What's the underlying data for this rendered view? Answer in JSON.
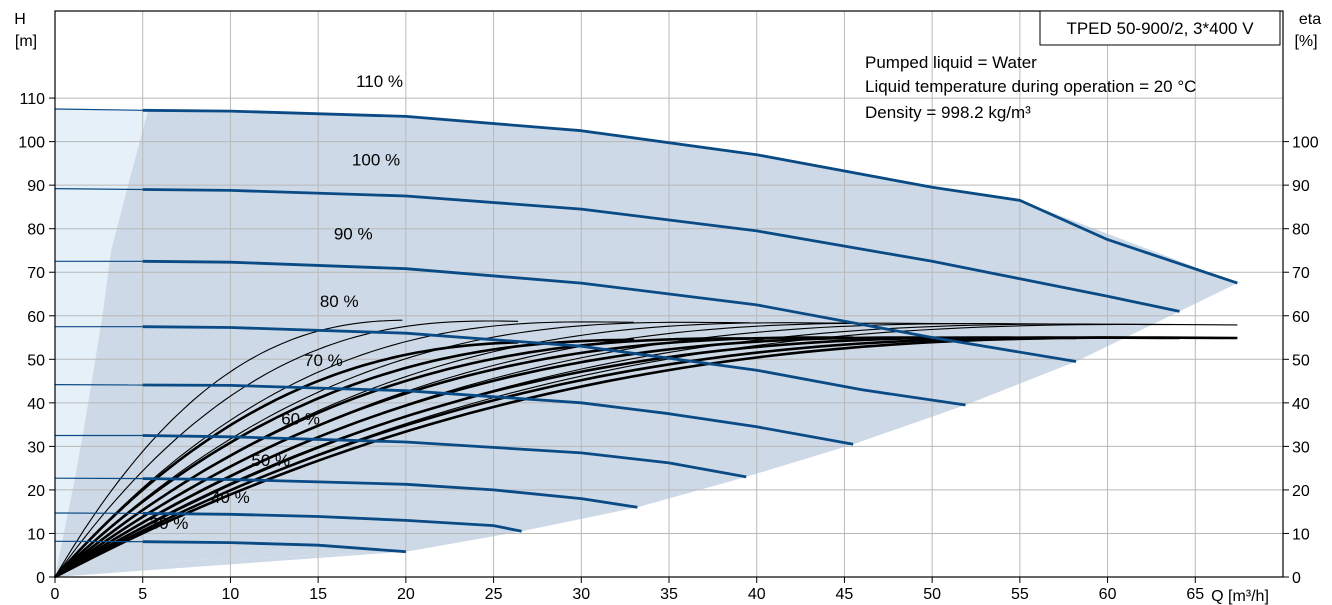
{
  "chart_data": {
    "type": "line",
    "title": "TPED 50-900/2, 3*400 V",
    "info_lines": [
      "Pumped liquid = Water",
      "Liquid temperature during operation = 20 °C",
      "Density = 998.2 kg/m³"
    ],
    "axes": {
      "x": {
        "label": "Q [m³/h]",
        "range": [
          0,
          70
        ],
        "ticks": [
          0,
          5,
          10,
          15,
          20,
          25,
          30,
          35,
          40,
          45,
          50,
          55,
          60,
          65
        ]
      },
      "y_left": {
        "label_top": "H",
        "label_unit": "[m]",
        "range": [
          0,
          130
        ],
        "ticks": [
          0,
          10,
          20,
          30,
          40,
          50,
          60,
          70,
          80,
          90,
          100,
          110
        ]
      },
      "y_right": {
        "label_top": "eta",
        "label_unit": "[%]",
        "range": [
          0,
          130
        ],
        "ticks": [
          0,
          10,
          20,
          30,
          40,
          50,
          60,
          70,
          80,
          90,
          100
        ]
      }
    },
    "grid": true,
    "colors": {
      "head_curve": "#0a4a85",
      "operating_area": "#cdd9e6",
      "left_area": "#e6f0f8",
      "efficiency_curve": "#000000",
      "grid": "#b9b9b9"
    },
    "head_curves": [
      {
        "label": "110 %",
        "points": [
          [
            0,
            107.5
          ],
          [
            5,
            107.2
          ],
          [
            10,
            107.0
          ],
          [
            20,
            105.8
          ],
          [
            30,
            102.5
          ],
          [
            40,
            97.0
          ],
          [
            50,
            89.5
          ],
          [
            55,
            86.5
          ],
          [
            60,
            77.5
          ],
          [
            67.4,
            67.5
          ]
        ]
      },
      {
        "label": "100 %",
        "points": [
          [
            0,
            89.2
          ],
          [
            5,
            89.0
          ],
          [
            10,
            88.8
          ],
          [
            20,
            87.5
          ],
          [
            30,
            84.5
          ],
          [
            40,
            79.5
          ],
          [
            50,
            72.5
          ],
          [
            55,
            68.5
          ],
          [
            60,
            64.5
          ],
          [
            64.1,
            61.0
          ]
        ]
      },
      {
        "label": "90 %",
        "points": [
          [
            0,
            72.5
          ],
          [
            5,
            72.5
          ],
          [
            10,
            72.3
          ],
          [
            20,
            70.8
          ],
          [
            30,
            67.5
          ],
          [
            40,
            62.5
          ],
          [
            50,
            55.0
          ],
          [
            58.2,
            49.5
          ]
        ]
      },
      {
        "label": "80 %",
        "points": [
          [
            0,
            57.5
          ],
          [
            5,
            57.5
          ],
          [
            10,
            57.3
          ],
          [
            20,
            56.0
          ],
          [
            30,
            53.0
          ],
          [
            40,
            47.5
          ],
          [
            46,
            43.0
          ],
          [
            51.9,
            39.5
          ]
        ]
      },
      {
        "label": "70 %",
        "points": [
          [
            0,
            44.2
          ],
          [
            5,
            44.1
          ],
          [
            10,
            44.0
          ],
          [
            20,
            42.8
          ],
          [
            30,
            40.0
          ],
          [
            35,
            37.5
          ],
          [
            40,
            34.5
          ],
          [
            45.5,
            30.5
          ]
        ]
      },
      {
        "label": "60 %",
        "points": [
          [
            0,
            32.5
          ],
          [
            5,
            32.5
          ],
          [
            10,
            32.2
          ],
          [
            20,
            31.0
          ],
          [
            30,
            28.5
          ],
          [
            35,
            26.2
          ],
          [
            39.4,
            23.0
          ]
        ]
      },
      {
        "label": "50 %",
        "points": [
          [
            0,
            22.7
          ],
          [
            5,
            22.6
          ],
          [
            10,
            22.4
          ],
          [
            20,
            21.3
          ],
          [
            25,
            20.0
          ],
          [
            30,
            18.0
          ],
          [
            33.2,
            16.0
          ]
        ]
      },
      {
        "label": "40 %",
        "points": [
          [
            0,
            14.7
          ],
          [
            5,
            14.6
          ],
          [
            10,
            14.4
          ],
          [
            15,
            13.9
          ],
          [
            20,
            13.0
          ],
          [
            25,
            11.8
          ],
          [
            26.6,
            10.5
          ]
        ]
      },
      {
        "label": "30 %",
        "points": [
          [
            0,
            8.2
          ],
          [
            5,
            8.1
          ],
          [
            10,
            7.9
          ],
          [
            15,
            7.3
          ],
          [
            20,
            5.8
          ]
        ]
      }
    ],
    "efficiency_curves": [
      {
        "q_end": 19.8,
        "eta_max": 59.0,
        "q_max": 20.5
      },
      {
        "q_end": 26.4,
        "eta_max": 58.8,
        "q_max": 25.0
      },
      {
        "q_end": 33.0,
        "eta_max": 58.6,
        "q_max": 30.5
      },
      {
        "q_end": 39.6,
        "eta_max": 58.5,
        "q_max": 36.0
      },
      {
        "q_end": 45.5,
        "eta_max": 58.4,
        "q_max": 42.0
      },
      {
        "q_end": 51.9,
        "eta_max": 58.3,
        "q_max": 47.5
      },
      {
        "q_end": 58.2,
        "eta_max": 58.2,
        "q_max": 53.0
      },
      {
        "q_end": 64.1,
        "eta_max": 58.1,
        "q_max": 58.5
      },
      {
        "q_end": 67.4,
        "eta_max": 58.0,
        "q_max": 62.0
      },
      {
        "q_end": 26.4,
        "eta_max": 54.0,
        "q_max": 28.5,
        "bold": true
      },
      {
        "q_end": 33.0,
        "eta_max": 54.5,
        "q_max": 34.0,
        "bold": true
      },
      {
        "q_end": 39.6,
        "eta_max": 54.8,
        "q_max": 39.0,
        "bold": true
      },
      {
        "q_end": 45.5,
        "eta_max": 55.0,
        "q_max": 44.0,
        "bold": true
      },
      {
        "q_end": 51.9,
        "eta_max": 55.0,
        "q_max": 49.0,
        "bold": true
      },
      {
        "q_end": 58.2,
        "eta_max": 55.0,
        "q_max": 54.0,
        "bold": true
      },
      {
        "q_end": 64.1,
        "eta_max": 55.0,
        "q_max": 58.5,
        "bold": true
      },
      {
        "q_end": 67.4,
        "eta_max": 55.0,
        "q_max": 62.0,
        "bold": true
      }
    ],
    "operating_area_boundary": [
      [
        5.3,
        107.2
      ],
      [
        20,
        106
      ],
      [
        30,
        102.5
      ],
      [
        40,
        97
      ],
      [
        50,
        89.5
      ],
      [
        55,
        86.5
      ],
      [
        67.4,
        67.5
      ],
      [
        64.1,
        61
      ],
      [
        58.2,
        49.5
      ],
      [
        51.9,
        39.5
      ],
      [
        45.5,
        30.5
      ],
      [
        39.4,
        23
      ],
      [
        33.2,
        16
      ],
      [
        26.6,
        10.5
      ],
      [
        20,
        5.8
      ]
    ]
  }
}
